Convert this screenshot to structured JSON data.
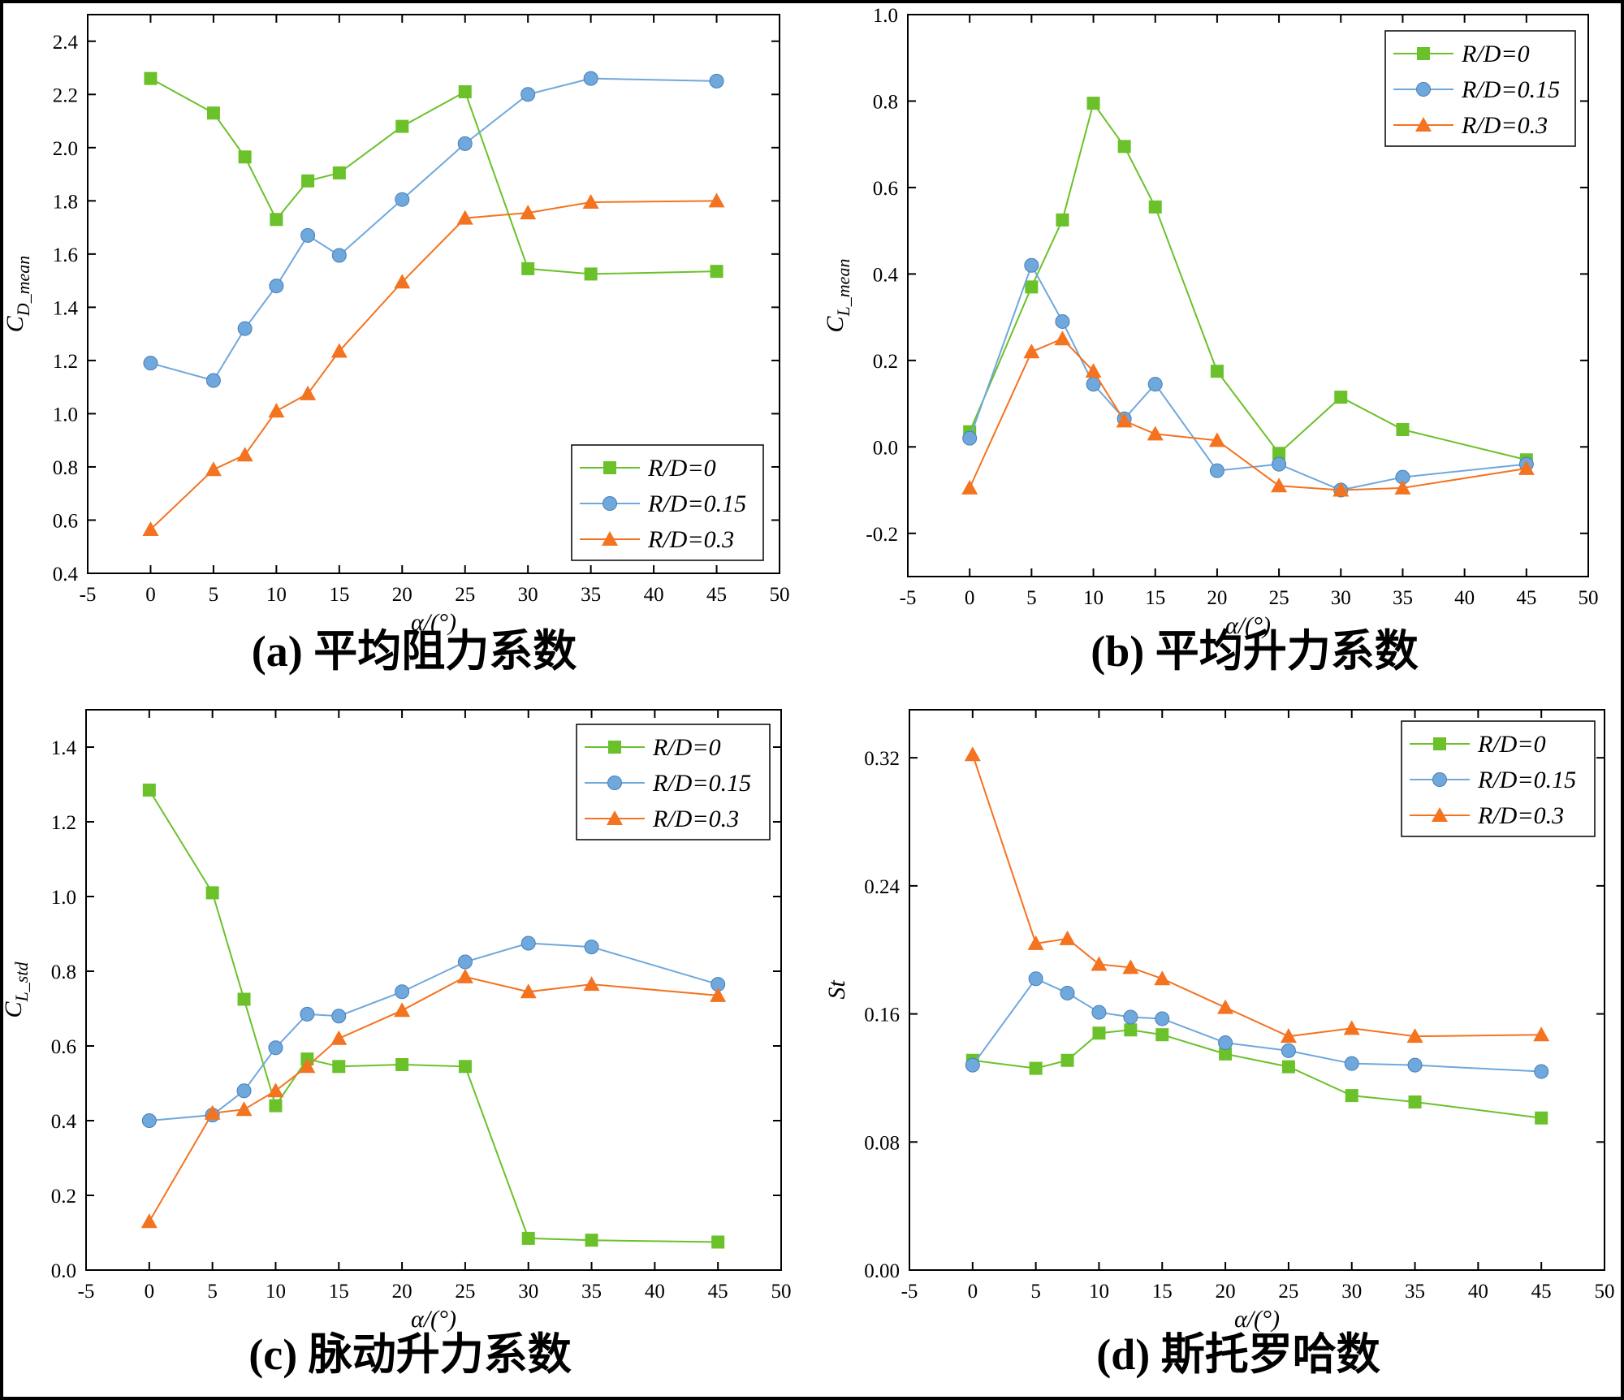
{
  "colors": {
    "rd0": "#6ac12a",
    "rd015": "#6fa8dc",
    "rd03": "#f47320",
    "axis": "#000000"
  },
  "legend_labels": [
    "R/D=0",
    "R/D=0.15",
    "R/D=0.3"
  ],
  "chart_data": [
    {
      "id": "a",
      "type": "line",
      "caption": "(a) 平均阻力系数",
      "xlabel": "α/(°)",
      "ylabel": "C_D_mean",
      "xlim": [
        -5,
        50
      ],
      "ylim": [
        0.4,
        2.5
      ],
      "xticks": [
        -5,
        0,
        5,
        10,
        15,
        20,
        25,
        30,
        35,
        40,
        45,
        50
      ],
      "xtick_labels": [
        "-5",
        "0",
        "5",
        "10",
        "15",
        "20",
        "25",
        "30",
        "35",
        "40",
        "45",
        "50"
      ],
      "yticks": [
        0.4,
        0.6,
        0.8,
        1.0,
        1.2,
        1.4,
        1.6,
        1.8,
        2.0,
        2.2,
        2.4
      ],
      "ytick_labels": [
        "0.4",
        "0.6",
        "0.8",
        "1.0",
        "1.2",
        "1.4",
        "1.6",
        "1.8",
        "2.0",
        "2.2",
        "2.4"
      ],
      "legend_position": "bottom-right",
      "series": [
        {
          "name": "R/D=0",
          "marker": "square",
          "x": [
            0,
            5,
            7.5,
            10,
            12.5,
            15,
            20,
            25,
            30,
            35,
            45
          ],
          "y": [
            2.26,
            2.13,
            1.965,
            1.73,
            1.875,
            1.905,
            2.08,
            2.21,
            1.545,
            1.525,
            1.535
          ]
        },
        {
          "name": "R/D=0.15",
          "marker": "circle",
          "x": [
            0,
            5,
            7.5,
            10,
            12.5,
            15,
            20,
            25,
            30,
            35,
            45
          ],
          "y": [
            1.19,
            1.125,
            1.32,
            1.48,
            1.67,
            1.595,
            1.805,
            2.015,
            2.2,
            2.26,
            2.25
          ]
        },
        {
          "name": "R/D=0.3",
          "marker": "triangle",
          "x": [
            0,
            5,
            7.5,
            10,
            12.5,
            15,
            20,
            25,
            30,
            35,
            45
          ],
          "y": [
            0.565,
            0.79,
            0.845,
            1.01,
            1.075,
            1.235,
            1.495,
            1.735,
            1.755,
            1.795,
            1.8
          ]
        }
      ]
    },
    {
      "id": "b",
      "type": "line",
      "caption": "(b) 平均升力系数",
      "xlabel": "α/(°)",
      "ylabel": "C_L_mean",
      "xlim": [
        -5,
        50
      ],
      "ylim": [
        -0.3,
        1.0
      ],
      "xticks": [
        -5,
        0,
        5,
        10,
        15,
        20,
        25,
        30,
        35,
        40,
        45,
        50
      ],
      "xtick_labels": [
        "-5",
        "0",
        "5",
        "10",
        "15",
        "20",
        "25",
        "30",
        "35",
        "40",
        "45",
        "50"
      ],
      "yticks": [
        -0.2,
        0.0,
        0.2,
        0.4,
        0.6,
        0.8,
        1.0
      ],
      "ytick_labels": [
        "-0.2",
        "0.0",
        "0.2",
        "0.4",
        "0.6",
        "0.8",
        "1.0"
      ],
      "legend_position": "top-right",
      "series": [
        {
          "name": "R/D=0",
          "marker": "square",
          "x": [
            0,
            5,
            7.5,
            10,
            12.5,
            15,
            20,
            25,
            30,
            35,
            45
          ],
          "y": [
            0.035,
            0.37,
            0.525,
            0.795,
            0.695,
            0.555,
            0.175,
            -0.015,
            0.115,
            0.04,
            -0.03
          ]
        },
        {
          "name": "R/D=0.15",
          "marker": "circle",
          "x": [
            0,
            5,
            7.5,
            10,
            12.5,
            15,
            20,
            25,
            30,
            35,
            45
          ],
          "y": [
            0.02,
            0.42,
            0.29,
            0.145,
            0.065,
            0.145,
            -0.055,
            -0.04,
            -0.1,
            -0.07,
            -0.04
          ]
        },
        {
          "name": "R/D=0.3",
          "marker": "triangle",
          "x": [
            0,
            5,
            7.5,
            10,
            12.5,
            15,
            20,
            25,
            30,
            35,
            45
          ],
          "y": [
            -0.095,
            0.22,
            0.25,
            0.175,
            0.06,
            0.03,
            0.015,
            -0.09,
            -0.1,
            -0.095,
            -0.05
          ]
        }
      ]
    },
    {
      "id": "c",
      "type": "line",
      "caption": "(c) 脉动升力系数",
      "xlabel": "α/(°)",
      "ylabel": "C_L_std",
      "xlim": [
        -5,
        50
      ],
      "ylim": [
        0.0,
        1.5
      ],
      "xticks": [
        -5,
        0,
        5,
        10,
        15,
        20,
        25,
        30,
        35,
        40,
        45,
        50
      ],
      "xtick_labels": [
        "-5",
        "0",
        "5",
        "10",
        "15",
        "20",
        "25",
        "30",
        "35",
        "40",
        "45",
        "50"
      ],
      "yticks": [
        0.0,
        0.2,
        0.4,
        0.6,
        0.8,
        1.0,
        1.2,
        1.4
      ],
      "ytick_labels": [
        "0.0",
        "0.2",
        "0.4",
        "0.6",
        "0.8",
        "1.0",
        "1.2",
        "1.4"
      ],
      "legend_position": "top-right",
      "series": [
        {
          "name": "R/D=0",
          "marker": "square",
          "x": [
            0,
            5,
            7.5,
            10,
            12.5,
            15,
            20,
            25,
            30,
            35,
            45
          ],
          "y": [
            1.285,
            1.01,
            0.725,
            0.44,
            0.565,
            0.545,
            0.55,
            0.545,
            0.085,
            0.08,
            0.075
          ]
        },
        {
          "name": "R/D=0.15",
          "marker": "circle",
          "x": [
            0,
            5,
            7.5,
            10,
            12.5,
            15,
            20,
            25,
            30,
            35,
            45
          ],
          "y": [
            0.4,
            0.415,
            0.48,
            0.595,
            0.685,
            0.68,
            0.745,
            0.825,
            0.875,
            0.865,
            0.765
          ]
        },
        {
          "name": "R/D=0.3",
          "marker": "triangle",
          "x": [
            0,
            5,
            7.5,
            10,
            12.5,
            15,
            20,
            25,
            30,
            35,
            45
          ],
          "y": [
            0.13,
            0.42,
            0.43,
            0.48,
            0.545,
            0.62,
            0.695,
            0.785,
            0.745,
            0.765,
            0.735
          ]
        }
      ]
    },
    {
      "id": "d",
      "type": "line",
      "caption": "(d) 斯托罗哈数",
      "xlabel": "α/(°)",
      "ylabel": "St",
      "xlim": [
        -5,
        50
      ],
      "ylim": [
        0.0,
        0.35
      ],
      "xticks": [
        -5,
        0,
        5,
        10,
        15,
        20,
        25,
        30,
        35,
        40,
        45,
        50
      ],
      "xtick_labels": [
        "-5",
        "0",
        "5",
        "10",
        "15",
        "20",
        "25",
        "30",
        "35",
        "40",
        "45",
        "50"
      ],
      "yticks": [
        0.0,
        0.08,
        0.16,
        0.24,
        0.32
      ],
      "ytick_labels": [
        "0.00",
        "0.08",
        "0.16",
        "0.24",
        "0.32"
      ],
      "legend_position": "top-right",
      "series": [
        {
          "name": "R/D=0",
          "marker": "square",
          "x": [
            0,
            5,
            7.5,
            10,
            12.5,
            15,
            20,
            25,
            30,
            35,
            45
          ],
          "y": [
            0.131,
            0.126,
            0.131,
            0.148,
            0.15,
            0.147,
            0.135,
            0.127,
            0.109,
            0.105,
            0.095
          ]
        },
        {
          "name": "R/D=0.15",
          "marker": "circle",
          "x": [
            0,
            5,
            7.5,
            10,
            12.5,
            15,
            20,
            25,
            30,
            35,
            45
          ],
          "y": [
            0.128,
            0.182,
            0.173,
            0.161,
            0.158,
            0.157,
            0.142,
            0.137,
            0.129,
            0.128,
            0.124
          ]
        },
        {
          "name": "R/D=0.3",
          "marker": "triangle",
          "x": [
            0,
            5,
            7.5,
            10,
            12.5,
            15,
            20,
            25,
            30,
            35,
            45
          ],
          "y": [
            0.322,
            0.204,
            0.207,
            0.191,
            0.189,
            0.182,
            0.164,
            0.146,
            0.151,
            0.146,
            0.147
          ]
        }
      ]
    }
  ]
}
